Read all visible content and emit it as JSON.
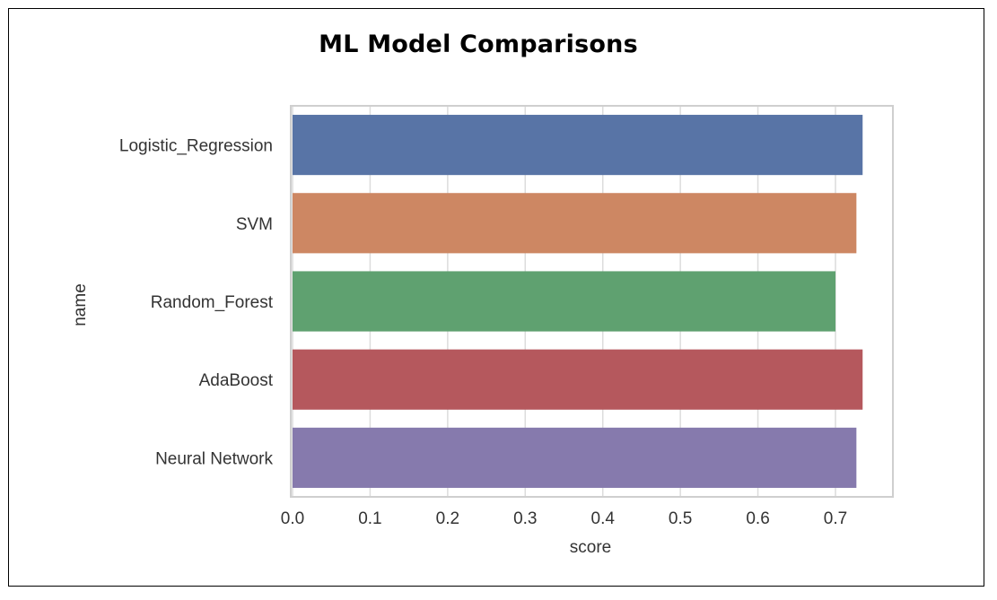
{
  "chart_data": {
    "type": "bar",
    "orientation": "horizontal",
    "title": "ML Model Comparisons",
    "xlabel": "score",
    "ylabel": "name",
    "categories": [
      "Logistic_Regression",
      "SVM",
      "Random_Forest",
      "AdaBoost",
      "Neural Network"
    ],
    "values": [
      0.735,
      0.727,
      0.7,
      0.735,
      0.727
    ],
    "colors": [
      "#5874a6",
      "#cd8763",
      "#5fa170",
      "#b5585d",
      "#867aad"
    ],
    "xlim": [
      0.0,
      0.775
    ],
    "xticks": [
      0.0,
      0.1,
      0.2,
      0.3,
      0.4,
      0.5,
      0.6,
      0.7
    ],
    "xtick_labels": [
      "0.0",
      "0.1",
      "0.2",
      "0.3",
      "0.4",
      "0.5",
      "0.6",
      "0.7"
    ],
    "grid": true,
    "grid_color": "#dcdcdc",
    "legend": "none"
  }
}
